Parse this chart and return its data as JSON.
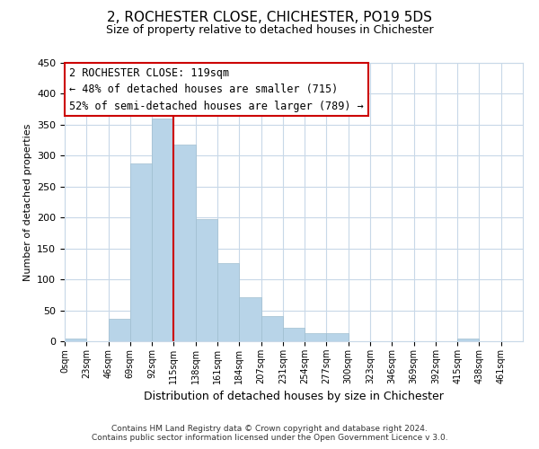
{
  "title": "2, ROCHESTER CLOSE, CHICHESTER, PO19 5DS",
  "subtitle": "Size of property relative to detached houses in Chichester",
  "xlabel": "Distribution of detached houses by size in Chichester",
  "ylabel": "Number of detached properties",
  "bar_labels": [
    "0sqm",
    "23sqm",
    "46sqm",
    "69sqm",
    "92sqm",
    "115sqm",
    "138sqm",
    "161sqm",
    "184sqm",
    "207sqm",
    "231sqm",
    "254sqm",
    "277sqm",
    "300sqm",
    "323sqm",
    "346sqm",
    "369sqm",
    "392sqm",
    "415sqm",
    "438sqm",
    "461sqm"
  ],
  "bar_heights": [
    5,
    0,
    36,
    288,
    360,
    318,
    197,
    127,
    71,
    41,
    22,
    13,
    13,
    0,
    0,
    0,
    0,
    0,
    5,
    0,
    0
  ],
  "bar_color": "#b8d4e8",
  "bar_edge_color": "#a0bfd0",
  "vline_x": 5,
  "vline_color": "#cc0000",
  "ylim": [
    0,
    450
  ],
  "yticks": [
    0,
    50,
    100,
    150,
    200,
    250,
    300,
    350,
    400,
    450
  ],
  "annotation_title": "2 ROCHESTER CLOSE: 119sqm",
  "annotation_line1": "← 48% of detached houses are smaller (715)",
  "annotation_line2": "52% of semi-detached houses are larger (789) →",
  "footer1": "Contains HM Land Registry data © Crown copyright and database right 2024.",
  "footer2": "Contains public sector information licensed under the Open Government Licence v 3.0.",
  "background_color": "#ffffff",
  "grid_color": "#c8d8e8",
  "title_fontsize": 11,
  "subtitle_fontsize": 9,
  "ylabel_fontsize": 8,
  "xlabel_fontsize": 9,
  "tick_fontsize": 8,
  "xtick_fontsize": 7,
  "footer_fontsize": 6.5,
  "annot_fontsize": 8.5
}
